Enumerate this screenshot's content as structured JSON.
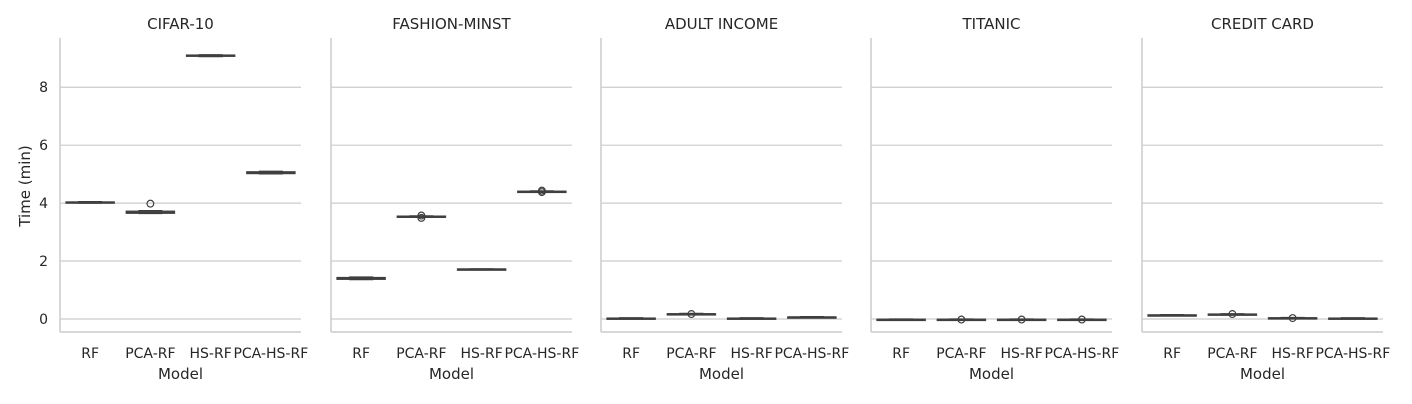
{
  "chart_data": {
    "type": "box",
    "ylabel": "Time (min)",
    "xlabel": "Model",
    "categories": [
      "RF",
      "PCA-RF",
      "HS-RF",
      "PCA-HS-RF"
    ],
    "ylim": [
      -0.45,
      9.7
    ],
    "yticks": [
      0,
      2,
      4,
      6,
      8
    ],
    "grid": true,
    "colors": {
      "box": "#d8d8d8",
      "line": "#3f3f3f",
      "grid": "#cccccc",
      "spine": "#cccccc"
    },
    "panels": [
      {
        "title": "CIFAR-10",
        "boxes": [
          {
            "category": "RF",
            "whislo": 4.0,
            "q1": 4.01,
            "med": 4.02,
            "q3": 4.04,
            "whishi": 4.05,
            "outliers": []
          },
          {
            "category": "PCA-RF",
            "whislo": 3.64,
            "q1": 3.65,
            "med": 3.68,
            "q3": 3.72,
            "whishi": 3.74,
            "outliers": [
              3.98
            ]
          },
          {
            "category": "HS-RF",
            "whislo": 9.06,
            "q1": 9.07,
            "med": 9.09,
            "q3": 9.11,
            "whishi": 9.12,
            "outliers": []
          },
          {
            "category": "PCA-HS-RF",
            "whislo": 5.01,
            "q1": 5.02,
            "med": 5.05,
            "q3": 5.08,
            "whishi": 5.1,
            "outliers": []
          }
        ]
      },
      {
        "title": "FASHION-MINST",
        "boxes": [
          {
            "category": "RF",
            "whislo": 1.36,
            "q1": 1.37,
            "med": 1.4,
            "q3": 1.43,
            "whishi": 1.45,
            "outliers": []
          },
          {
            "category": "PCA-RF",
            "whislo": 3.52,
            "q1": 3.53,
            "med": 3.54,
            "q3": 3.55,
            "whishi": 3.56,
            "outliers": [
              3.49,
              3.57
            ]
          },
          {
            "category": "HS-RF",
            "whislo": 1.71,
            "q1": 1.715,
            "med": 1.72,
            "q3": 1.725,
            "whishi": 1.73,
            "outliers": []
          },
          {
            "category": "PCA-HS-RF",
            "whislo": 4.39,
            "q1": 4.395,
            "med": 4.4,
            "q3": 4.41,
            "whishi": 4.42,
            "outliers": [
              4.38,
              4.43
            ]
          }
        ]
      },
      {
        "title": "ADULT INCOME",
        "boxes": [
          {
            "category": "RF",
            "whislo": 0.0,
            "q1": 0.01,
            "med": 0.02,
            "q3": 0.03,
            "whishi": 0.04,
            "outliers": []
          },
          {
            "category": "PCA-RF",
            "whislo": 0.15,
            "q1": 0.16,
            "med": 0.17,
            "q3": 0.18,
            "whishi": 0.19,
            "outliers": [
              0.17
            ]
          },
          {
            "category": "HS-RF",
            "whislo": 0.0,
            "q1": 0.01,
            "med": 0.02,
            "q3": 0.03,
            "whishi": 0.04,
            "outliers": []
          },
          {
            "category": "PCA-HS-RF",
            "whislo": 0.04,
            "q1": 0.05,
            "med": 0.06,
            "q3": 0.07,
            "whishi": 0.08,
            "outliers": []
          }
        ]
      },
      {
        "title": "TITANIC",
        "boxes": [
          {
            "category": "RF",
            "whislo": -0.04,
            "q1": -0.03,
            "med": -0.02,
            "q3": -0.01,
            "whishi": 0.0,
            "outliers": []
          },
          {
            "category": "PCA-RF",
            "whislo": -0.04,
            "q1": -0.03,
            "med": -0.02,
            "q3": -0.01,
            "whishi": 0.0,
            "outliers": [
              -0.02
            ]
          },
          {
            "category": "HS-RF",
            "whislo": -0.04,
            "q1": -0.03,
            "med": -0.02,
            "q3": -0.01,
            "whishi": 0.0,
            "outliers": [
              -0.02
            ]
          },
          {
            "category": "PCA-HS-RF",
            "whislo": -0.04,
            "q1": -0.03,
            "med": -0.02,
            "q3": -0.01,
            "whishi": 0.0,
            "outliers": [
              -0.02
            ]
          }
        ]
      },
      {
        "title": "CREDIT CARD",
        "boxes": [
          {
            "category": "RF",
            "whislo": 0.11,
            "q1": 0.12,
            "med": 0.13,
            "q3": 0.14,
            "whishi": 0.15,
            "outliers": []
          },
          {
            "category": "PCA-RF",
            "whislo": 0.14,
            "q1": 0.15,
            "med": 0.16,
            "q3": 0.17,
            "whishi": 0.18,
            "outliers": [
              0.17
            ]
          },
          {
            "category": "HS-RF",
            "whislo": 0.01,
            "q1": 0.02,
            "med": 0.03,
            "q3": 0.04,
            "whishi": 0.05,
            "outliers": [
              0.03
            ]
          },
          {
            "category": "PCA-HS-RF",
            "whislo": 0.0,
            "q1": 0.01,
            "med": 0.02,
            "q3": 0.03,
            "whishi": 0.04,
            "outliers": []
          }
        ]
      }
    ]
  }
}
